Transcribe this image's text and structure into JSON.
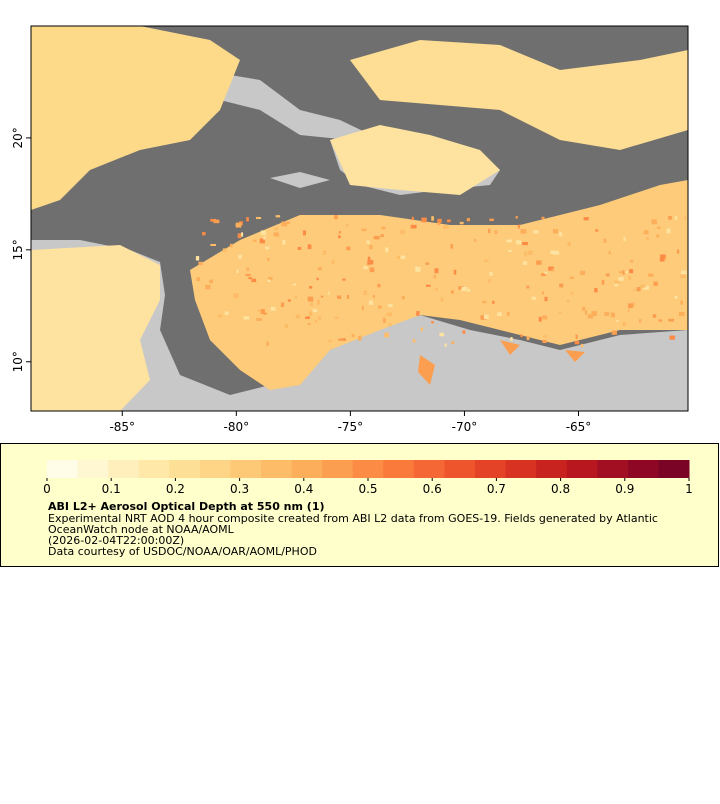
{
  "map": {
    "xlim": [
      -89,
      -60.2
    ],
    "ylim": [
      7.8,
      25
    ],
    "xticks": [
      {
        "value": -85,
        "label": "-85°"
      },
      {
        "value": -80,
        "label": "-80°"
      },
      {
        "value": -75,
        "label": "-75°"
      },
      {
        "value": -70,
        "label": "-70°"
      },
      {
        "value": -65,
        "label": "-65°"
      }
    ],
    "yticks": [
      {
        "value": 10,
        "label": "10°"
      },
      {
        "value": 15,
        "label": "15°"
      },
      {
        "value": 20,
        "label": "20°"
      }
    ]
  },
  "colorbar": {
    "lim": [
      0,
      1
    ],
    "ticks": [
      0,
      0.1,
      0.2,
      0.3,
      0.4,
      0.5,
      0.6,
      0.7,
      0.8,
      0.9,
      1
    ],
    "colors": [
      "#fffde8",
      "#fff6d2",
      "#ffefbd",
      "#ffe8a8",
      "#fedf96",
      "#fed586",
      "#fdc976",
      "#fdbc67",
      "#fdae5b",
      "#fc9e50",
      "#fc8c45",
      "#fa7a3c",
      "#f56734",
      "#ee552d",
      "#e44327",
      "#d83222",
      "#c9231f",
      "#b8171f",
      "#a30f22",
      "#8e0826",
      "#7a0426"
    ]
  },
  "caption": {
    "title": "ABI L2+ Aerosol Optical Depth at 550 nm (1)",
    "lines": [
      "Experimental NRT AOD 4 hour composite created from ABI L2 data from GOES-19. Fields generated by Atlantic",
      "OceanWatch node at NOAA/AOML",
      "(2026-02-04T22:00:00Z)",
      "Data courtesy of USDOC/NOAA/OAR/AOML/PHOD"
    ]
  }
}
